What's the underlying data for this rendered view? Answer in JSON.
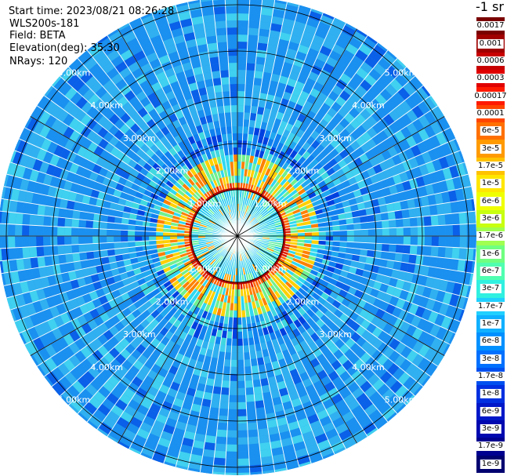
{
  "header": {
    "start_time": "Start time: 2023/08/21 08:26:28",
    "instrument": "WLS200s-181",
    "field": "Field: BETA",
    "elevation": "Elevation(deg): 35.30",
    "nrays": "NRays: 120"
  },
  "colorbar": {
    "title": "-1 sr",
    "labels": [
      "0.0017",
      "0.001",
      "0.0006",
      "0.0003",
      "0.00017",
      "0.0001",
      "6e-5",
      "3e-5",
      "1.7e-5",
      "1e-5",
      "6e-6",
      "3e-6",
      "1.7e-6",
      "1e-6",
      "6e-7",
      "3e-7",
      "1.7e-7",
      "1e-7",
      "6e-8",
      "3e-8",
      "1.7e-8",
      "1e-8",
      "6e-9",
      "3e-9",
      "1.7e-9",
      "1e-9"
    ],
    "colors": [
      "#7a0000",
      "#a00000",
      "#c80000",
      "#e00000",
      "#ff1a00",
      "#ff4500",
      "#ff7000",
      "#ff9a00",
      "#ffc200",
      "#ffe600",
      "#f0ff00",
      "#c8ff10",
      "#a0ff50",
      "#70ff80",
      "#50ffb0",
      "#30f0e0",
      "#20d0ff",
      "#10b0ff",
      "#0090ff",
      "#0070ff",
      "#0050f0",
      "#0030e0",
      "#0018c8",
      "#0008b0",
      "#000090",
      "#000070"
    ]
  },
  "chart_data": {
    "type": "polar",
    "title": "",
    "n_rays": 120,
    "elevation_deg": 35.3,
    "range_rings_km": [
      1,
      2,
      3,
      4,
      5
    ],
    "range_labels": [
      "1.00km",
      "2.00km",
      "3.00km",
      "4.00km",
      "5.00km"
    ],
    "spokes_deg": [
      0,
      30,
      60,
      90,
      120,
      150,
      180,
      210,
      240,
      270,
      300,
      330
    ],
    "colorscale": "log backscatter, 1e-9 to 0.0017 sr-1"
  }
}
